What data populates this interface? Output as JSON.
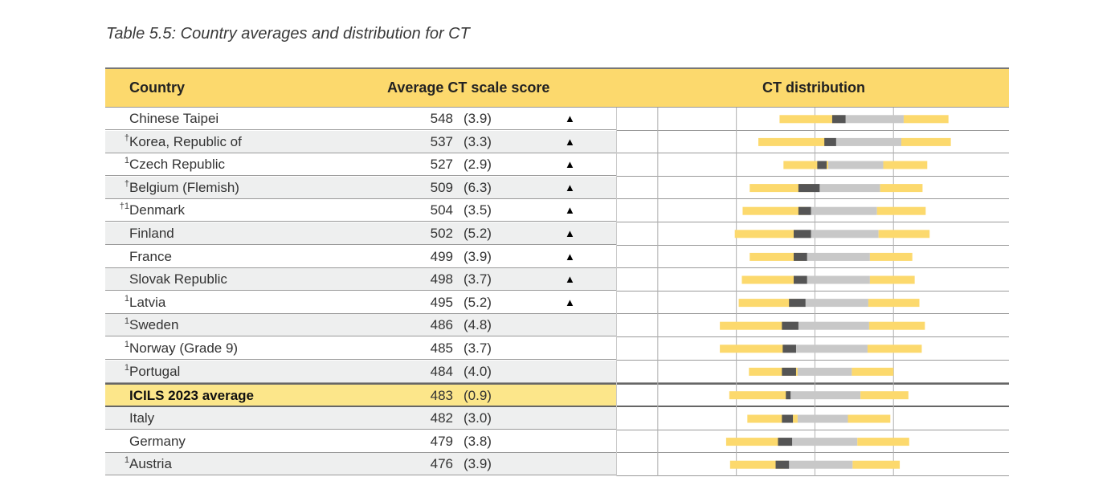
{
  "caption": "Table 5.5: Country averages and distribution for CT",
  "headers": {
    "country": "Country",
    "score": "Average CT scale score",
    "distribution": "CT distribution"
  },
  "colors": {
    "header_bg": "#fcd96d",
    "average_row_bg": "#fce68a",
    "percentile_outer": "#fcd96d",
    "percentile_inner": "#c8c8c8",
    "confidence_interval": "#555555"
  },
  "chart_data": {
    "type": "table",
    "title": "Table 5.5: Country averages and distribution for CT",
    "columns": [
      "Country",
      "Average CT scale score",
      "CT distribution"
    ],
    "distribution_xlim": [
      265,
      765
    ],
    "distribution_gridlines": [
      318,
      418,
      518,
      618
    ],
    "rows": [
      {
        "footnote": "",
        "country": "Chinese Taipei",
        "score": "548",
        "se": "(3.9)",
        "marker": "▲",
        "p5": 473,
        "p25": 548,
        "ci_lo": 540,
        "ci_hi": 557,
        "p75": 631,
        "p95": 688
      },
      {
        "footnote": "†",
        "country": "Korea, Republic of",
        "score": "537",
        "se": "(3.3)",
        "marker": "▲",
        "p5": 446,
        "p25": 531,
        "ci_lo": 530,
        "ci_hi": 545,
        "p75": 628,
        "p95": 691
      },
      {
        "footnote": "1",
        "country": "Czech Republic",
        "score": "527",
        "se": "(2.9)",
        "marker": "▲",
        "p5": 478,
        "p25": 535,
        "ci_lo": 521,
        "ci_hi": 533,
        "p75": 605,
        "p95": 661
      },
      {
        "footnote": "†",
        "country": "Belgium (Flemish)",
        "score": "509",
        "se": "(6.3)",
        "marker": "▲",
        "p5": 435,
        "p25": 515,
        "ci_lo": 497,
        "ci_hi": 524,
        "p75": 601,
        "p95": 655
      },
      {
        "footnote": "†1",
        "country": "Denmark",
        "score": "504",
        "se": "(3.5)",
        "marker": "▲",
        "p5": 426,
        "p25": 507,
        "ci_lo": 497,
        "ci_hi": 513,
        "p75": 597,
        "p95": 659
      },
      {
        "footnote": "",
        "country": "Finland",
        "score": "502",
        "se": "(5.2)",
        "marker": "▲",
        "p5": 416,
        "p25": 498,
        "ci_lo": 491,
        "ci_hi": 513,
        "p75": 599,
        "p95": 664
      },
      {
        "footnote": "",
        "country": "France",
        "score": "499",
        "se": "(3.9)",
        "marker": "▲",
        "p5": 435,
        "p25": 503,
        "ci_lo": 491,
        "ci_hi": 508,
        "p75": 588,
        "p95": 642
      },
      {
        "footnote": "",
        "country": "Slovak Republic",
        "score": "498",
        "se": "(3.7)",
        "marker": "▲",
        "p5": 425,
        "p25": 505,
        "ci_lo": 491,
        "ci_hi": 508,
        "p75": 588,
        "p95": 645
      },
      {
        "footnote": "1",
        "country": "Latvia",
        "score": "495",
        "se": "(5.2)",
        "marker": "▲",
        "p5": 421,
        "p25": 495,
        "ci_lo": 485,
        "ci_hi": 506,
        "p75": 586,
        "p95": 651
      },
      {
        "footnote": "1",
        "country": "Sweden",
        "score": "486",
        "se": "(4.8)",
        "marker": "",
        "p5": 397,
        "p25": 480,
        "ci_lo": 476,
        "ci_hi": 497,
        "p75": 587,
        "p95": 658
      },
      {
        "footnote": "1",
        "country": "Norway (Grade 9)",
        "score": "485",
        "se": "(3.7)",
        "marker": "",
        "p5": 397,
        "p25": 479,
        "ci_lo": 477,
        "ci_hi": 494,
        "p75": 585,
        "p95": 654
      },
      {
        "footnote": "1",
        "country": "Portugal",
        "score": "484",
        "se": "(4.0)",
        "marker": "",
        "p5": 434,
        "p25": 496,
        "ci_lo": 476,
        "ci_hi": 494,
        "p75": 565,
        "p95": 618
      },
      {
        "footnote": "",
        "country": "ICILS 2023 average",
        "score": "483",
        "se": "(0.9)",
        "marker": "",
        "p5": 409,
        "p25": 484,
        "ci_lo": 481,
        "ci_hi": 487,
        "p75": 576,
        "p95": 637,
        "is_average": true
      },
      {
        "footnote": "",
        "country": "Italy",
        "score": "482",
        "se": "(3.0)",
        "marker": "",
        "p5": 432,
        "p25": 496,
        "ci_lo": 476,
        "ci_hi": 490,
        "p75": 560,
        "p95": 614
      },
      {
        "footnote": "",
        "country": "Germany",
        "score": "479",
        "se": "(3.8)",
        "marker": "",
        "p5": 405,
        "p25": 475,
        "ci_lo": 471,
        "ci_hi": 489,
        "p75": 572,
        "p95": 638
      },
      {
        "footnote": "1",
        "country": "Austria",
        "score": "476",
        "se": "(3.9)",
        "marker": "",
        "p5": 410,
        "p25": 479,
        "ci_lo": 468,
        "ci_hi": 485,
        "p75": 566,
        "p95": 626
      }
    ]
  }
}
